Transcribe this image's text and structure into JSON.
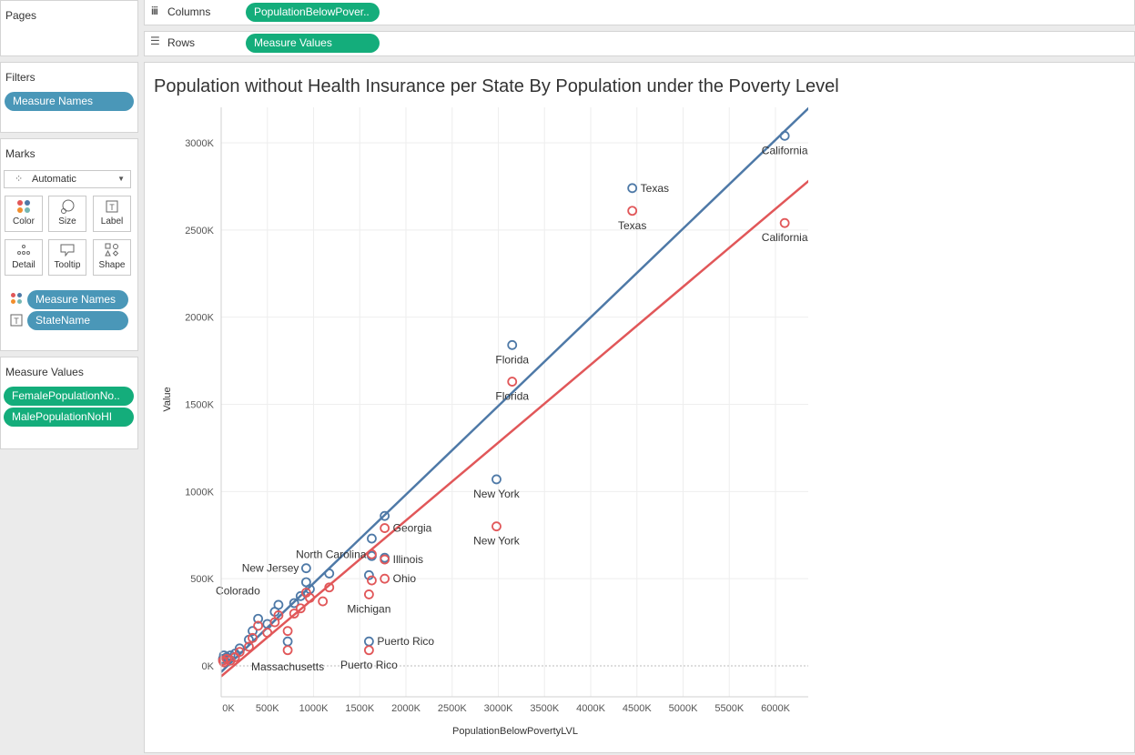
{
  "pages": {
    "title": "Pages"
  },
  "filters": {
    "title": "Filters",
    "pill": "Measure Names"
  },
  "marks": {
    "title": "Marks",
    "type_select": "Automatic",
    "buttons": [
      {
        "label": "Color",
        "icon": "color-dots-icon"
      },
      {
        "label": "Size",
        "icon": "size-icon"
      },
      {
        "label": "Label",
        "icon": "label-icon"
      },
      {
        "label": "Detail",
        "icon": "detail-icon"
      },
      {
        "label": "Tooltip",
        "icon": "tooltip-icon"
      },
      {
        "label": "Shape",
        "icon": "shape-icon"
      }
    ],
    "color_pill": "Measure Names",
    "label_pill": "StateName"
  },
  "measure_values": {
    "title": "Measure Values",
    "pills": [
      "FemalePopulationNo..",
      "MalePopulationNoHI"
    ]
  },
  "shelves": {
    "columns_label": "Columns",
    "columns_pill": "PopulationBelowPover..",
    "rows_label": "Rows",
    "rows_pill": "Measure Values"
  },
  "colors": {
    "blue_series": "#4e79a7",
    "red_series": "#e15759",
    "pill_blue": "#4a97b8",
    "pill_green": "#14ad7b"
  },
  "chart_data": {
    "type": "scatter",
    "title": "Population without Health Insurance per State By Population under the Poverty Level",
    "xlabel": "PopulationBelowPovertyLVL",
    "ylabel": "Value",
    "xlim": [
      0,
      6400000
    ],
    "ylim": [
      -150000,
      3150000
    ],
    "x_ticks": [
      0,
      500000,
      1000000,
      1500000,
      2000000,
      2500000,
      3000000,
      3500000,
      4000000,
      4500000,
      5000000,
      5500000,
      6000000
    ],
    "x_tick_labels": [
      "0K",
      "500K",
      "1000K",
      "1500K",
      "2000K",
      "2500K",
      "3000K",
      "3500K",
      "4000K",
      "4500K",
      "5000K",
      "5500K",
      "6000K"
    ],
    "y_ticks": [
      0,
      500000,
      1000000,
      1500000,
      2000000,
      2500000,
      3000000
    ],
    "y_tick_labels": [
      "0K",
      "500K",
      "1000K",
      "1500K",
      "2000K",
      "2500K",
      "3000K"
    ],
    "grid": true,
    "series": [
      {
        "color": "blue",
        "trend": {
          "x0": 0,
          "y0": -35000,
          "x1": 6400000,
          "y1": 3220000
        },
        "points": [
          [
            6100000,
            3040000,
            "California"
          ],
          [
            4450000,
            2740000,
            "Texas"
          ],
          [
            3150000,
            1840000,
            "Florida"
          ],
          [
            2980000,
            1070000,
            "New York"
          ],
          [
            1770000,
            860000,
            ""
          ],
          [
            1630000,
            730000,
            ""
          ],
          [
            1630000,
            630000,
            ""
          ],
          [
            1770000,
            620000,
            ""
          ],
          [
            1600000,
            520000,
            ""
          ],
          [
            1170000,
            530000,
            ""
          ],
          [
            920000,
            560000,
            ""
          ],
          [
            920000,
            480000,
            ""
          ],
          [
            960000,
            440000,
            ""
          ],
          [
            860000,
            400000,
            ""
          ],
          [
            790000,
            360000,
            ""
          ],
          [
            620000,
            350000,
            ""
          ],
          [
            580000,
            310000,
            ""
          ],
          [
            400000,
            270000,
            ""
          ],
          [
            500000,
            240000,
            ""
          ],
          [
            340000,
            200000,
            ""
          ],
          [
            300000,
            150000,
            ""
          ],
          [
            720000,
            140000,
            ""
          ],
          [
            1600000,
            140000,
            "Puerto Rico"
          ],
          [
            200000,
            100000,
            ""
          ],
          [
            150000,
            70000,
            ""
          ],
          [
            100000,
            60000,
            ""
          ],
          [
            60000,
            50000,
            ""
          ],
          [
            30000,
            60000,
            ""
          ],
          [
            20000,
            40000,
            ""
          ]
        ]
      },
      {
        "color": "red",
        "trend": {
          "x0": 0,
          "y0": -60000,
          "x1": 6400000,
          "y1": 2800000
        },
        "points": [
          [
            6100000,
            2540000,
            "California"
          ],
          [
            4450000,
            2610000,
            "Texas"
          ],
          [
            3150000,
            1630000,
            "Florida"
          ],
          [
            2980000,
            800000,
            "New York"
          ],
          [
            1770000,
            790000,
            "Georgia"
          ],
          [
            1630000,
            640000,
            "North Carolina"
          ],
          [
            1770000,
            610000,
            "Illinois"
          ],
          [
            1630000,
            490000,
            ""
          ],
          [
            1770000,
            500000,
            "Ohio"
          ],
          [
            1600000,
            410000,
            "Michigan"
          ],
          [
            1170000,
            450000,
            ""
          ],
          [
            1100000,
            370000,
            ""
          ],
          [
            920000,
            420000,
            ""
          ],
          [
            960000,
            390000,
            ""
          ],
          [
            860000,
            330000,
            ""
          ],
          [
            790000,
            300000,
            ""
          ],
          [
            620000,
            290000,
            ""
          ],
          [
            580000,
            250000,
            ""
          ],
          [
            400000,
            230000,
            ""
          ],
          [
            500000,
            190000,
            ""
          ],
          [
            720000,
            200000,
            ""
          ],
          [
            340000,
            160000,
            ""
          ],
          [
            300000,
            110000,
            ""
          ],
          [
            720000,
            90000,
            ""
          ],
          [
            1600000,
            90000,
            "Puerto Rico"
          ],
          [
            200000,
            80000,
            ""
          ],
          [
            150000,
            50000,
            ""
          ],
          [
            100000,
            30000,
            ""
          ],
          [
            60000,
            40000,
            ""
          ],
          [
            30000,
            20000,
            ""
          ],
          [
            20000,
            30000,
            ""
          ]
        ]
      }
    ],
    "free_labels": [
      {
        "text": "New Jersey",
        "x": 920000,
        "y": 560000,
        "anchor": "end"
      },
      {
        "text": "Colorado",
        "x": 500000,
        "y": 430000,
        "anchor": "end"
      },
      {
        "text": "Massachusetts",
        "x": 720000,
        "y": 10000,
        "anchor": "middle"
      }
    ]
  }
}
